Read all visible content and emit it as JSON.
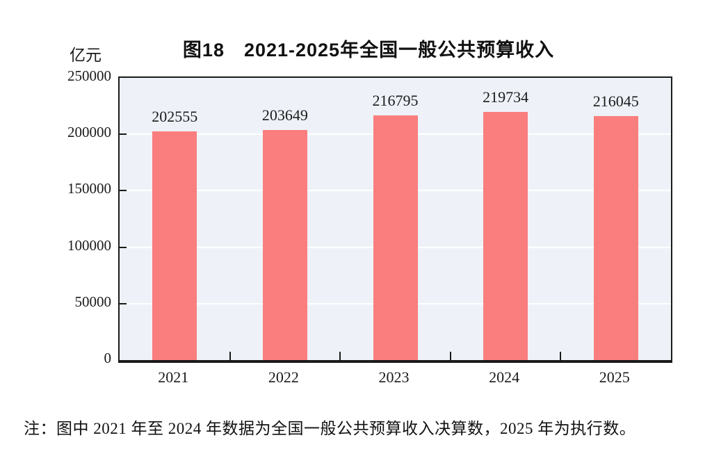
{
  "title": "图18　2021-2025年全国一般公共预算收入",
  "unit_label": "亿元",
  "note": "注：图中 2021 年至 2024 年数据为全国一般公共预算收入决算数，2025 年为执行数。",
  "colors": {
    "bar": "#fa7e7e",
    "plot_background": "#eef2f8",
    "gridline": "#ffffff",
    "axis": "#1a1a1a",
    "text": "#1a1a1a",
    "page_background": "#ffffff"
  },
  "chart_data": {
    "type": "bar",
    "title": "图18　2021-2025年全国一般公共预算收入",
    "categories": [
      "2021",
      "2022",
      "2023",
      "2024",
      "2025"
    ],
    "values": [
      202555,
      203649,
      216795,
      219734,
      216045
    ],
    "data_labels": [
      "202555",
      "203649",
      "216795",
      "219734",
      "216045"
    ],
    "xlabel": "",
    "ylabel": "亿元",
    "ylim": [
      0,
      250000
    ],
    "yticks": [
      0,
      50000,
      100000,
      150000,
      200000,
      250000
    ],
    "grid": "horizontal white gridlines on shaded plot area",
    "legend": "none",
    "note": "注：图中 2021 年至 2024 年数据为全国一般公共预算收入决算数，2025 年为执行数。"
  }
}
